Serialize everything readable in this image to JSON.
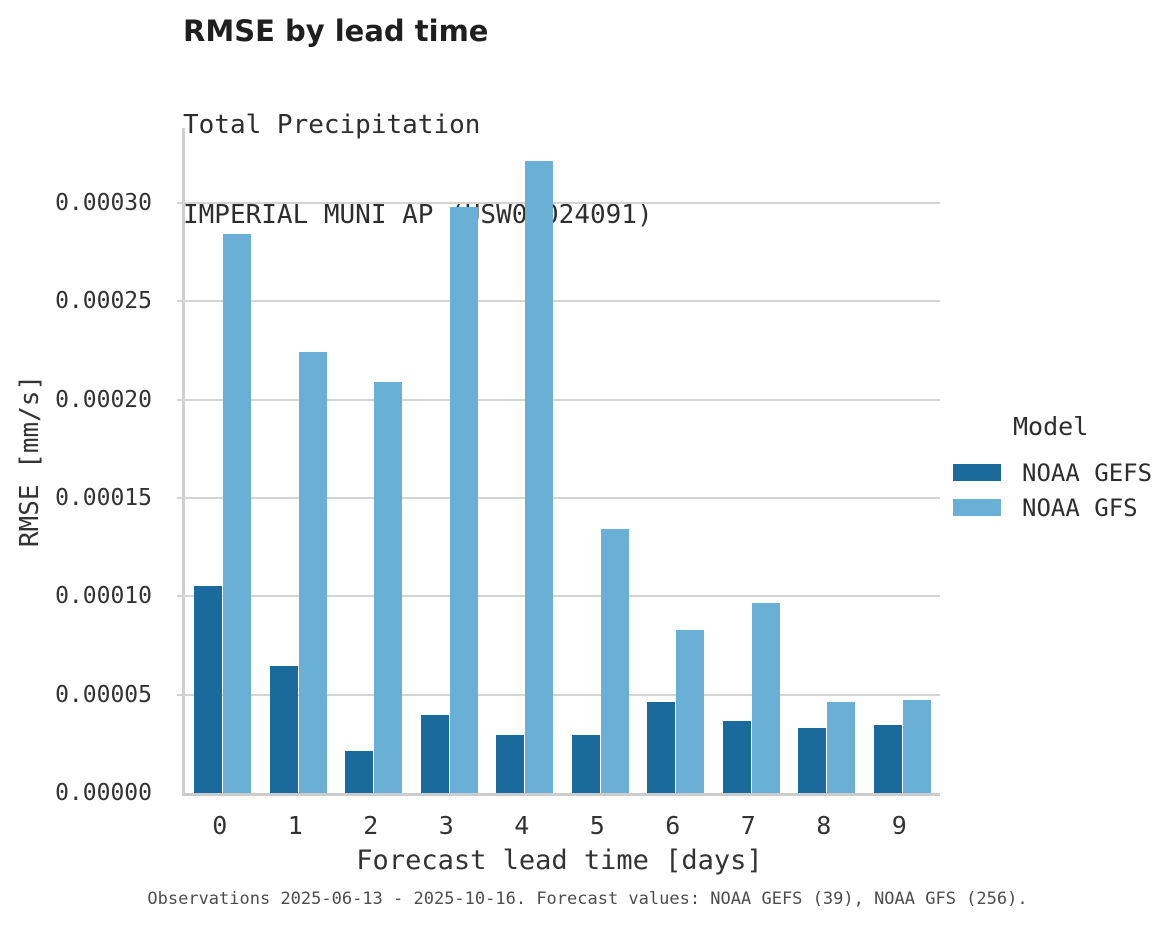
{
  "header": {
    "title": "RMSE by lead time",
    "subtitle1": "Total Precipitation",
    "subtitle2": "IMPERIAL MUNI AP (USW00024091)"
  },
  "legend": {
    "title": "Model",
    "entries": [
      {
        "label": "NOAA GEFS",
        "color": "#1a6b9b"
      },
      {
        "label": "NOAA GFS",
        "color": "#69afd6"
      }
    ]
  },
  "footer": "Observations 2025-06-13 - 2025-10-16. Forecast values: NOAA GEFS (39), NOAA GFS (256).",
  "colors": {
    "gefs_bar": "#1a6b9b",
    "gfs_bar": "#69afd6",
    "gridline": "#d4d4d4",
    "axis_line": "#cfcfcf",
    "baseline": "#cccccc",
    "tick_text": "#333333",
    "title_text": "#1f1f1f",
    "footer_text": "#4d4d4d"
  },
  "chart_data": {
    "type": "bar",
    "title": "RMSE by lead time",
    "subtitle": "Total Precipitation — IMPERIAL MUNI AP (USW00024091)",
    "categories": [
      "0",
      "1",
      "2",
      "3",
      "4",
      "5",
      "6",
      "7",
      "8",
      "9"
    ],
    "series": [
      {
        "name": "NOAA GEFS",
        "color": "#1a6b9b",
        "values": [
          0.000105,
          6.45e-05,
          2.15e-05,
          3.98e-05,
          2.96e-05,
          2.96e-05,
          4.62e-05,
          3.65e-05,
          3.3e-05,
          3.48e-05
        ]
      },
      {
        "name": "NOAA GFS",
        "color": "#69afd6",
        "values": [
          0.000284,
          0.000224,
          0.000209,
          0.000298,
          0.000321,
          0.000134,
          8.3e-05,
          9.68e-05,
          4.62e-05,
          4.75e-05
        ]
      }
    ],
    "xlabel": "Forecast lead time [days]",
    "ylabel": "RMSE [mm/s]",
    "ylim": [
      0,
      0.000338
    ],
    "yticks": [
      0,
      5e-05,
      0.0001,
      0.00015,
      0.0002,
      0.00025,
      0.0003
    ],
    "ytick_labels": [
      "0.00000",
      "0.00005",
      "0.00010",
      "0.00015",
      "0.00020",
      "0.00025",
      "0.00030"
    ],
    "grid": true,
    "legend_position": "right",
    "legend_title": "Model"
  }
}
